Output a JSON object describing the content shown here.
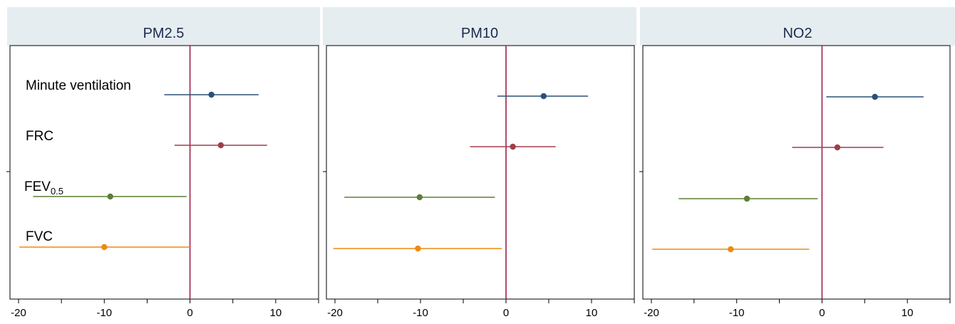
{
  "chart_data": {
    "type": "forest",
    "row_labels": [
      {
        "main": "Minute ventilation",
        "sub": ""
      },
      {
        "main": "FRC",
        "sub": ""
      },
      {
        "main": "FEV",
        "sub": "0.5"
      },
      {
        "main": "FVC",
        "sub": ""
      }
    ],
    "xlim": [
      -21,
      15
    ],
    "xticks": [
      -20,
      -10,
      0,
      10
    ],
    "reference_line": 0,
    "grid": false,
    "colors": {
      "panel_header_bg": "#e6edf1",
      "reference_line": "#a0204a",
      "minute_ventilation": "#2b5079",
      "frc": "#a23c48",
      "fev": "#5e7e36",
      "fvc": "#ee8a12"
    },
    "panels": [
      {
        "title": "PM2.5",
        "series": [
          {
            "estimate": 2.5,
            "lower": -3.0,
            "upper": 8.0
          },
          {
            "estimate": 3.6,
            "lower": -1.8,
            "upper": 9.0
          },
          {
            "estimate": -9.3,
            "lower": -18.3,
            "upper": -0.4
          },
          {
            "estimate": -10.0,
            "lower": -19.9,
            "upper": 0.0
          }
        ]
      },
      {
        "title": "PM10",
        "series": [
          {
            "estimate": 4.4,
            "lower": -1.0,
            "upper": 9.6
          },
          {
            "estimate": 0.8,
            "lower": -4.2,
            "upper": 5.8
          },
          {
            "estimate": -10.1,
            "lower": -18.9,
            "upper": -1.3
          },
          {
            "estimate": -10.3,
            "lower": -20.2,
            "upper": -0.5
          }
        ]
      },
      {
        "title": "NO2",
        "series": [
          {
            "estimate": 6.2,
            "lower": 0.5,
            "upper": 11.9
          },
          {
            "estimate": 1.8,
            "lower": -3.5,
            "upper": 7.2
          },
          {
            "estimate": -8.8,
            "lower": -16.8,
            "upper": -0.5
          },
          {
            "estimate": -10.7,
            "lower": -19.9,
            "upper": -1.5
          }
        ]
      }
    ]
  }
}
